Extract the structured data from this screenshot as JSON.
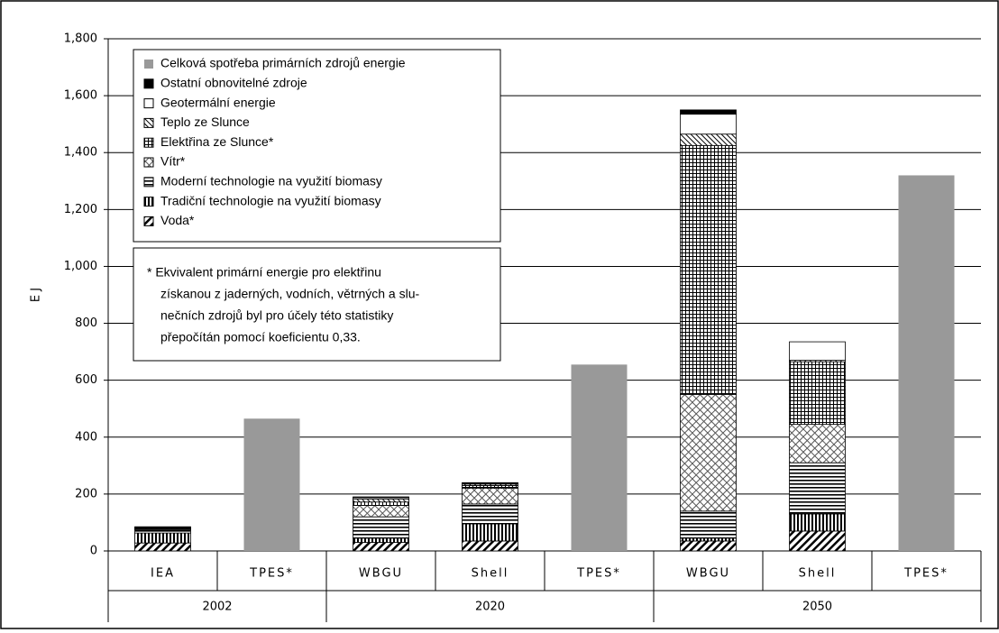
{
  "chart_data": {
    "type": "stacked_bar",
    "y_label": "E J",
    "categories": [
      "IEA",
      "TPES*",
      "WBGU",
      "Shell",
      "TPES*",
      "WBGU",
      "Shell",
      "TPES*"
    ],
    "group_labels": [
      "2002",
      null,
      "2020",
      null,
      null,
      "2050",
      null,
      null
    ],
    "ylim": [
      0,
      1800
    ],
    "yticks": [
      0,
      200,
      400,
      600,
      800,
      {
        "value": 1000,
        "label": "1,000"
      },
      {
        "value": 1200,
        "label": "1,200"
      },
      {
        "value": 1400,
        "label": "1,400"
      },
      {
        "value": 1600,
        "label": "1,600"
      },
      {
        "value": 1800,
        "label": "1,800"
      }
    ],
    "grid": true,
    "series": [
      {
        "name": "Voda*",
        "color": "#000000",
        "pattern": "diag",
        "values": [
          28,
          null,
          30,
          35,
          null,
          35,
          70,
          null
        ]
      },
      {
        "name": "Tradiční technologie na využití biomasy",
        "color": "#000000",
        "pattern": "vertical",
        "values": [
          35,
          null,
          15,
          60,
          null,
          10,
          60,
          null
        ]
      },
      {
        "name": "Moderní technologie na využití biomasy",
        "color": "#000000",
        "pattern": "horizontal",
        "values": [
          12,
          null,
          75,
          70,
          null,
          95,
          180,
          null
        ]
      },
      {
        "name": "Vítr*",
        "color": "#000000",
        "pattern": "crossdiag",
        "values": [
          2,
          null,
          40,
          55,
          null,
          410,
          135,
          null
        ]
      },
      {
        "name": "Elektřina ze Slunce*",
        "color": "#000000",
        "pattern": "grid",
        "values": [
          1,
          null,
          12,
          10,
          null,
          875,
          220,
          null
        ]
      },
      {
        "name": "Teplo ze Slunce",
        "color": "#000000",
        "pattern": "backdiag",
        "values": [
          3,
          null,
          10,
          5,
          null,
          40,
          5,
          null
        ]
      },
      {
        "name": "Geotermální energie",
        "color": "#ffffff",
        "pattern": "none",
        "values": [
          2,
          null,
          5,
          3,
          null,
          70,
          65,
          null
        ]
      },
      {
        "name": "Ostatní obnovitelné zdroje",
        "color": "#000000",
        "pattern": "solid",
        "values": [
          2,
          null,
          3,
          2,
          null,
          15,
          0,
          null
        ]
      },
      {
        "name": "Celková spotřeba primárních zdrojů energie",
        "color": "#999999",
        "pattern": "solid",
        "values": [
          null,
          465,
          null,
          null,
          655,
          null,
          null,
          1320
        ]
      }
    ],
    "note": [
      "* Ekvivalent primární energie pro elektřinu",
      "získanou z jaderných, vodních, větrných a slu-",
      "nečních zdrojů byl pro účely této statistiky",
      "přepočítán pomocí koeficientu 0,33."
    ]
  }
}
